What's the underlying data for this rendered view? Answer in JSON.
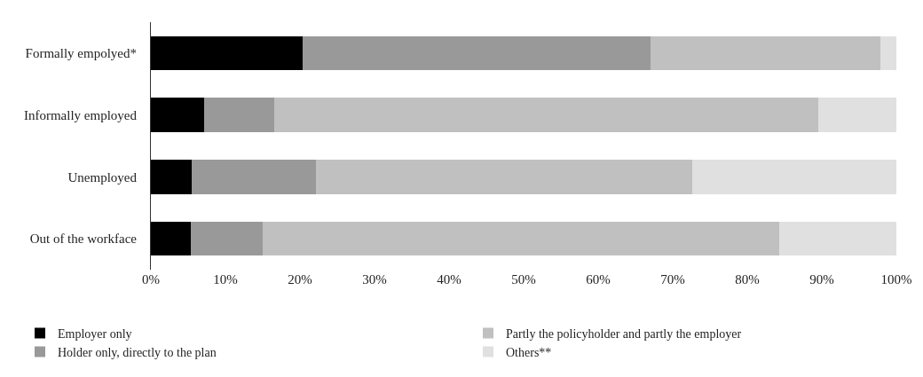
{
  "chart_data": {
    "type": "bar",
    "orientation": "horizontal",
    "stacked": true,
    "categories": [
      "Formally empolyed*",
      "Informally employed",
      "Unemployed",
      "Out of the workface"
    ],
    "series": [
      {
        "name": "Employer only",
        "color": "#000000",
        "values": [
          20.4,
          7.1,
          5.5,
          5.3
        ]
      },
      {
        "name": "Holder only, directly to the plan",
        "color": "#999999",
        "values": [
          46.6,
          9.5,
          16.7,
          9.7
        ]
      },
      {
        "name": "Partly the policyholder and partly the employer",
        "color": "#c0c0c0",
        "values": [
          30.9,
          72.9,
          50.4,
          69.3
        ]
      },
      {
        "name": "Others**",
        "color": "#e0e0e0",
        "values": [
          2.1,
          10.5,
          27.4,
          15.7
        ]
      }
    ],
    "xlim": [
      0,
      100
    ],
    "xticks": [
      {
        "value": 0,
        "label": "0%"
      },
      {
        "value": 10,
        "label": "10%"
      },
      {
        "value": 20,
        "label": "20%"
      },
      {
        "value": 30,
        "label": "30%"
      },
      {
        "value": 40,
        "label": "40%"
      },
      {
        "value": 50,
        "label": "50%"
      },
      {
        "value": 60,
        "label": "60%"
      },
      {
        "value": 70,
        "label": "70%"
      },
      {
        "value": 80,
        "label": "80%"
      },
      {
        "value": 90,
        "label": "90%"
      },
      {
        "value": 100,
        "label": "100%"
      }
    ],
    "legend": "bottom"
  }
}
